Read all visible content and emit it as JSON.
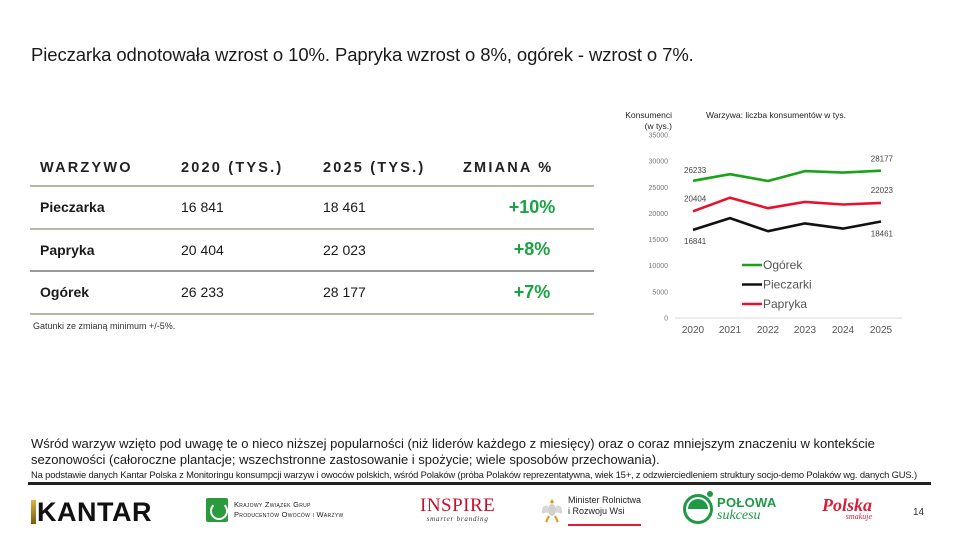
{
  "slide": {
    "title": "Pieczarka odnotowała wzrost o 10%. Papryka wzrost o 8%, ogórek - wzrost o 7%.",
    "page_number": "14"
  },
  "table": {
    "headers": [
      "WARZYWO",
      "2020 (TYS.)",
      "2025 (TYS.)",
      "ZMIANA %"
    ],
    "rows": [
      {
        "name": "Pieczarka",
        "y2020": "16 841",
        "y2025": "18 461",
        "change": "+10%"
      },
      {
        "name": "Papryka",
        "y2020": "20 404",
        "y2025": "22 023",
        "change": "+8%"
      },
      {
        "name": "Ogórek",
        "y2020": "26 233",
        "y2025": "28 177",
        "change": "+7%"
      }
    ],
    "note": "Gatunki ze zmianą minimum +/-5%.",
    "change_color": "#1aa342"
  },
  "chart_data": {
    "type": "line",
    "title": "Warzywa: liczba konsumentów w tys.",
    "ylabel": "Konsumenci (w tys.)",
    "xlabel": "",
    "x": [
      "2020",
      "2021",
      "2022",
      "2023",
      "2024",
      "2025"
    ],
    "ylim": [
      0,
      35000
    ],
    "yticks": [
      0,
      5000,
      10000,
      15000,
      20000,
      25000,
      30000,
      35000
    ],
    "grid": false,
    "legend_position": "inside-bottom-center",
    "series": [
      {
        "name": "Ogórek",
        "color": "#1aa31a",
        "values": [
          26233,
          27500,
          26200,
          28100,
          27800,
          28177
        ],
        "labels": {
          "0": "26233",
          "5": "28177"
        }
      },
      {
        "name": "Pieczarki",
        "color": "#111111",
        "values": [
          16841,
          19100,
          16600,
          18100,
          17100,
          18461
        ],
        "labels": {
          "0": "16841",
          "5": "18461"
        }
      },
      {
        "name": "Papryka",
        "color": "#e8112d",
        "values": [
          20404,
          23000,
          21000,
          22200,
          21700,
          22023
        ],
        "labels": {
          "0": "20404",
          "5": "22023"
        }
      }
    ]
  },
  "footer": {
    "description": "Wśród warzyw wzięto pod uwagę te o nieco niższej popularności (niż liderów każdego z miesięcy) oraz o coraz mniejszym znaczeniu w kontekście sezonowości (całoroczne plantacje; wszechstronne zastosowanie i spożycie; wiele sposobów przechowania).",
    "source": "Na podstawie danych Kantar Polska z Monitoringu konsumpcji warzyw i owoców polskich, wśród Polaków (próba Polaków reprezentatywna, wiek 15+, z odzwierciedleniem struktury socjo-demo Polaków wg. danych GUS.)"
  },
  "logos": {
    "kantar": "KANTAR",
    "kzgp_line1": "Krajowy Związek Grup",
    "kzgp_line2": "Producentów Owoców i Warzyw",
    "inspire": "INSPIRE",
    "inspire_sub": "smarter branding",
    "minister_line1": "Minister Rolnictwa",
    "minister_line2": "i Rozwoju Wsi",
    "polowa_line1": "POŁOWA",
    "polowa_line2": "sukcesu",
    "polska_line1": "Polska",
    "polska_line2": "smakuje"
  }
}
